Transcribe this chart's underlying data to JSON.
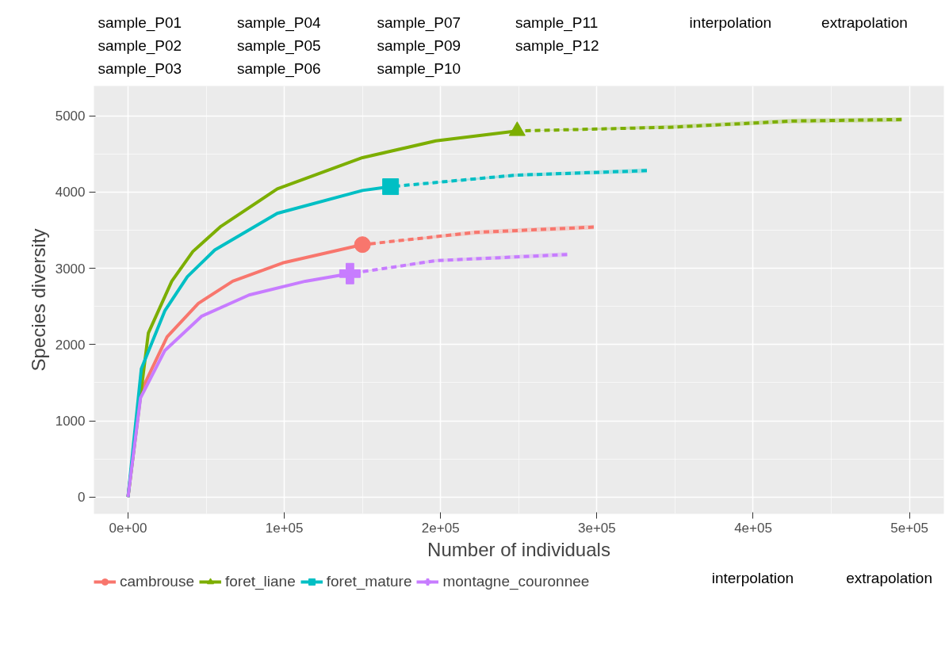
{
  "chart_data": {
    "type": "line",
    "xlabel": "Number of individuals",
    "ylabel": "Species diversity",
    "xlim": [
      -21800,
      522000
    ],
    "ylim": [
      -220,
      5390
    ],
    "xticks": [
      {
        "value": 0,
        "label": "0e+00"
      },
      {
        "value": 100000,
        "label": "1e+05"
      },
      {
        "value": 200000,
        "label": "2e+05"
      },
      {
        "value": 300000,
        "label": "3e+05"
      },
      {
        "value": 400000,
        "label": "4e+05"
      },
      {
        "value": 500000,
        "label": "5e+05"
      }
    ],
    "yticks": [
      0,
      1000,
      2000,
      3000,
      4000,
      5000
    ],
    "grid": true,
    "legend": "bottom",
    "annotations": [
      "sample_P01",
      "sample_P02",
      "sample_P03",
      "sample_P04",
      "sample_P05",
      "sample_P06",
      "sample_P07",
      "sample_P09",
      "sample_P10",
      "sample_P11",
      "sample_P12",
      "interpolation",
      "extrapolation",
      "interpolation",
      "extrapolation"
    ],
    "series": [
      {
        "name": "cambrouse",
        "color": "#f8766d",
        "line_style": "solid",
        "x": [
          0,
          8000,
          25000,
          45000,
          67000,
          99000,
          150000
        ],
        "values": [
          0,
          1370,
          2100,
          2540,
          2830,
          3070,
          3310
        ]
      },
      {
        "name": "foret_liane",
        "color": "#7cae00",
        "line_style": "solid",
        "x": [
          0,
          13000,
          28000,
          41500,
          59500,
          95500,
          150000,
          197000,
          249000
        ],
        "values": [
          0,
          2150,
          2830,
          3220,
          3550,
          4040,
          4450,
          4670,
          4800
        ]
      },
      {
        "name": "foret_mature",
        "color": "#00bfc4",
        "line_style": "solid",
        "x": [
          0,
          8500,
          23500,
          38000,
          55500,
          95500,
          150000,
          168000
        ],
        "values": [
          0,
          1680,
          2440,
          2890,
          3240,
          3720,
          4020,
          4070
        ]
      },
      {
        "name": "montagne_couronnee",
        "color": "#c77cff",
        "line_style": "solid",
        "x": [
          0,
          8000,
          23500,
          47000,
          77500,
          113500,
          142000
        ],
        "values": [
          0,
          1300,
          1920,
          2370,
          2650,
          2830,
          2930
        ]
      },
      {
        "color": "#f8766d",
        "line_style": "dashed",
        "x": [
          150000,
          222000,
          298000
        ],
        "values": [
          3310,
          3470,
          3540
        ],
        "lower": [
          3310,
          3440,
          3510
        ],
        "upper": [
          3310,
          3500,
          3570
        ]
      },
      {
        "color": "#7cae00",
        "line_style": "dashed",
        "x": [
          249000,
          349000,
          424500,
          495000
        ],
        "values": [
          4800,
          4850,
          4930,
          4950
        ],
        "lower": [
          4800,
          4830,
          4900,
          4920
        ],
        "upper": [
          4800,
          4880,
          4960,
          4980
        ]
      },
      {
        "color": "#00bfc4",
        "line_style": "dashed",
        "x": [
          168000,
          247500,
          332000
        ],
        "values": [
          4070,
          4220,
          4280
        ],
        "lower": [
          4070,
          4200,
          4250
        ],
        "upper": [
          4070,
          4240,
          4310
        ]
      },
      {
        "color": "#c77cff",
        "line_style": "dashed",
        "x": [
          142000,
          197000,
          281000
        ],
        "values": [
          2930,
          3100,
          3180
        ],
        "lower": [
          2930,
          3080,
          3150
        ],
        "upper": [
          2930,
          3120,
          3210
        ]
      },
      {
        "type": "scatter",
        "color": "#f8766d",
        "marker": "circle",
        "x": [
          150000
        ],
        "values": [
          3310
        ]
      },
      {
        "type": "scatter",
        "color": "#7cae00",
        "marker": "triangle",
        "x": [
          249000
        ],
        "values": [
          4800
        ]
      },
      {
        "type": "scatter",
        "color": "#00bfc4",
        "marker": "square",
        "x": [
          168000
        ],
        "values": [
          4070
        ]
      },
      {
        "type": "scatter",
        "color": "#c77cff",
        "marker": "cross",
        "x": [
          142000
        ],
        "values": [
          2930
        ]
      }
    ]
  }
}
